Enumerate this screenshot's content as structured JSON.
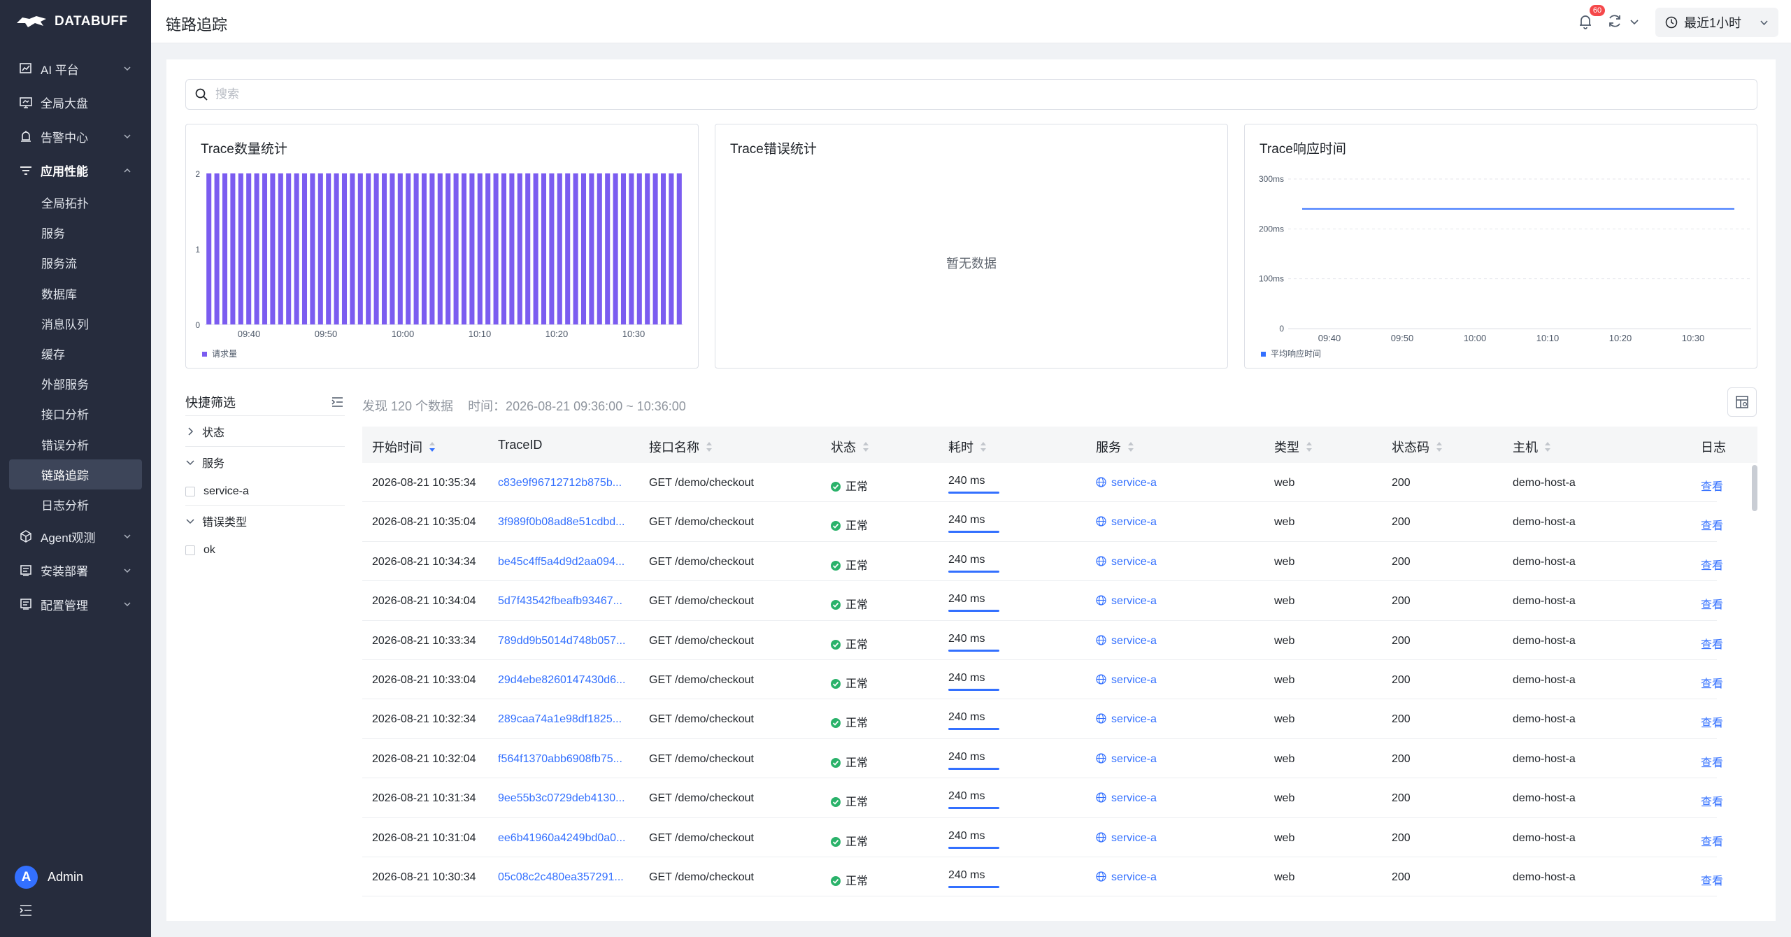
{
  "app": {
    "brand": "DATABUFF",
    "page_title": "链路追踪"
  },
  "header": {
    "notification_count": "60",
    "time_range": "最近1小时"
  },
  "sidebar": {
    "items": [
      {
        "label": "AI 平台",
        "icon": "chart-icon",
        "expandable": true
      },
      {
        "label": "全局大盘",
        "icon": "monitor-icon",
        "expandable": false
      },
      {
        "label": "告警中心",
        "icon": "alarm-icon",
        "expandable": true
      },
      {
        "label": "应用性能",
        "icon": "filter-lines-icon",
        "expandable": true,
        "open": true
      }
    ],
    "sub_items": [
      "全局拓扑",
      "服务",
      "服务流",
      "数据库",
      "消息队列",
      "缓存",
      "外部服务",
      "接口分析",
      "错误分析",
      "链路追踪",
      "日志分析"
    ],
    "active_sub": "链路追踪",
    "items_after": [
      {
        "label": "Agent观测",
        "icon": "cube-icon"
      },
      {
        "label": "安装部署",
        "icon": "install-icon"
      },
      {
        "label": "配置管理",
        "icon": "config-icon"
      }
    ],
    "user": {
      "initial": "A",
      "name": "Admin"
    }
  },
  "search": {
    "placeholder": "搜索"
  },
  "panels": {
    "count": {
      "title": "Trace数量统计",
      "legend": "请求量"
    },
    "errors": {
      "title": "Trace错误统计",
      "empty": "暂无数据"
    },
    "latency": {
      "title": "Trace响应时间",
      "legend": "平均响应时间"
    }
  },
  "chart_data": [
    {
      "type": "bar",
      "title": "Trace数量统计",
      "series": [
        {
          "name": "请求量",
          "values": [
            2,
            2,
            2,
            2,
            2,
            2,
            2,
            2,
            2,
            2,
            2,
            2,
            2,
            2,
            2,
            2,
            2,
            2,
            2,
            2,
            2,
            2,
            2,
            2,
            2,
            2,
            2,
            2,
            2,
            2,
            2,
            2,
            2,
            2,
            2,
            2,
            2,
            2,
            2,
            2,
            2,
            2,
            2,
            2,
            2,
            2,
            2,
            2,
            2,
            2,
            2,
            2,
            2,
            2,
            2,
            2,
            2,
            2,
            2,
            2
          ]
        }
      ],
      "x_ticks": [
        "09:40",
        "09:50",
        "10:00",
        "10:10",
        "10:20",
        "10:30"
      ],
      "y_ticks": [
        "0",
        "1",
        "2"
      ],
      "ylim": [
        0,
        2
      ],
      "color": "#7b5cf0",
      "legend_position": "bottom-left"
    },
    {
      "type": "line",
      "title": "Trace错误统计",
      "series": [],
      "empty_text": "暂无数据"
    },
    {
      "type": "line",
      "title": "Trace响应时间",
      "series": [
        {
          "name": "平均响应时间",
          "values": [
            240,
            240
          ]
        }
      ],
      "x_ticks": [
        "09:40",
        "09:50",
        "10:00",
        "10:10",
        "10:20",
        "10:30"
      ],
      "y_ticks": [
        "0",
        "100ms",
        "200ms",
        "300ms"
      ],
      "ylim": [
        0,
        300
      ],
      "color": "#3370ff",
      "legend_position": "bottom-left"
    }
  ],
  "quick_filter": {
    "title": "快捷筛选",
    "groups": [
      {
        "label": "状态",
        "open": false,
        "options": []
      },
      {
        "label": "服务",
        "open": true,
        "options": [
          "service-a"
        ]
      },
      {
        "label": "错误类型",
        "open": true,
        "options": [
          "ok"
        ]
      }
    ]
  },
  "summary": {
    "found": "发现 120 个数据",
    "time": "时间：2026-08-21 09:36:00 ~ 10:36:00"
  },
  "table": {
    "columns": [
      "开始时间",
      "TraceID",
      "接口名称",
      "状态",
      "耗时",
      "服务",
      "类型",
      "状态码",
      "主机",
      "日志"
    ],
    "rows": [
      [
        "2026-08-21 10:35:34",
        "c83e9f96712712b875b...",
        "GET /demo/checkout",
        "正常",
        "240 ms",
        "service-a",
        "web",
        "200",
        "demo-host-a",
        "查看"
      ],
      [
        "2026-08-21 10:35:04",
        "3f989f0b08ad8e51cdbd...",
        "GET /demo/checkout",
        "正常",
        "240 ms",
        "service-a",
        "web",
        "200",
        "demo-host-a",
        "查看"
      ],
      [
        "2026-08-21 10:34:34",
        "be45c4ff5a4d9d2aa094...",
        "GET /demo/checkout",
        "正常",
        "240 ms",
        "service-a",
        "web",
        "200",
        "demo-host-a",
        "查看"
      ],
      [
        "2026-08-21 10:34:04",
        "5d7f43542fbeafb93467...",
        "GET /demo/checkout",
        "正常",
        "240 ms",
        "service-a",
        "web",
        "200",
        "demo-host-a",
        "查看"
      ],
      [
        "2026-08-21 10:33:34",
        "789dd9b5014d748b057...",
        "GET /demo/checkout",
        "正常",
        "240 ms",
        "service-a",
        "web",
        "200",
        "demo-host-a",
        "查看"
      ],
      [
        "2026-08-21 10:33:04",
        "29d4ebe8260147430d6...",
        "GET /demo/checkout",
        "正常",
        "240 ms",
        "service-a",
        "web",
        "200",
        "demo-host-a",
        "查看"
      ],
      [
        "2026-08-21 10:32:34",
        "289caa74a1e98df1825...",
        "GET /demo/checkout",
        "正常",
        "240 ms",
        "service-a",
        "web",
        "200",
        "demo-host-a",
        "查看"
      ],
      [
        "2026-08-21 10:32:04",
        "f564f1370abb6908fb75...",
        "GET /demo/checkout",
        "正常",
        "240 ms",
        "service-a",
        "web",
        "200",
        "demo-host-a",
        "查看"
      ],
      [
        "2026-08-21 10:31:34",
        "9ee55b3c0729deb4130...",
        "GET /demo/checkout",
        "正常",
        "240 ms",
        "service-a",
        "web",
        "200",
        "demo-host-a",
        "查看"
      ],
      [
        "2026-08-21 10:31:04",
        "ee6b41960a4249bd0a0...",
        "GET /demo/checkout",
        "正常",
        "240 ms",
        "service-a",
        "web",
        "200",
        "demo-host-a",
        "查看"
      ],
      [
        "2026-08-21 10:30:34",
        "05c08c2c480ea357291...",
        "GET /demo/checkout",
        "正常",
        "240 ms",
        "service-a",
        "web",
        "200",
        "demo-host-a",
        "查看"
      ]
    ]
  },
  "colors": {
    "accent": "#3370ff",
    "success": "#2ab26a",
    "sidebar": "#262c3d",
    "bar": "#7b5cf0"
  }
}
